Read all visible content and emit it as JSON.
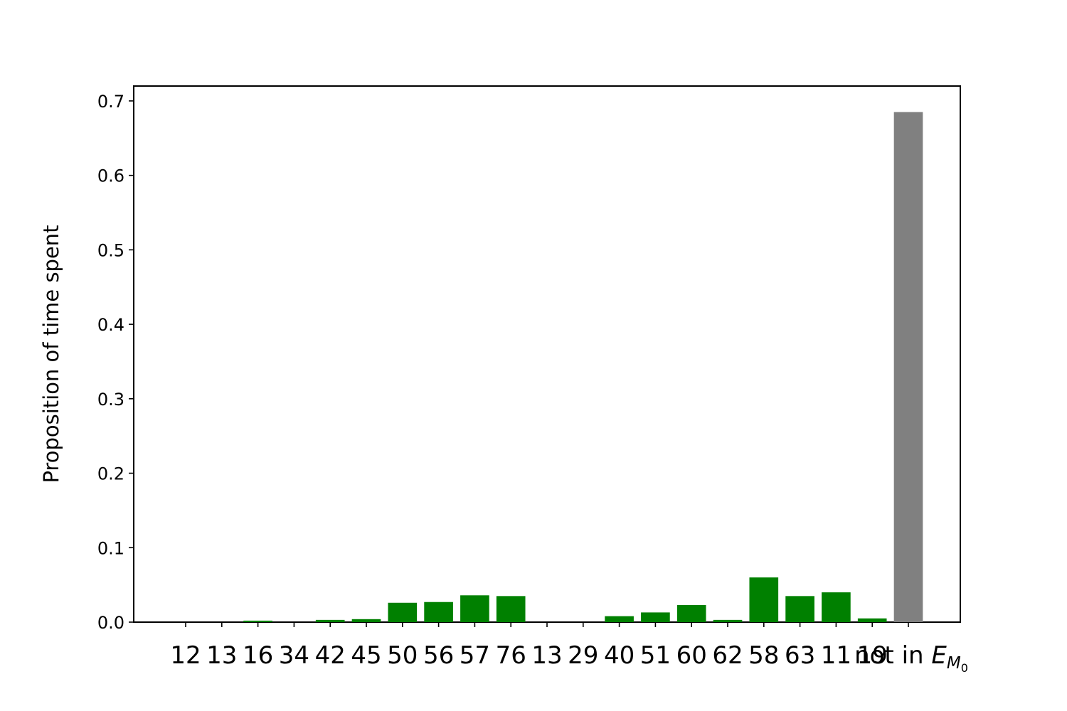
{
  "chart_data": {
    "type": "bar",
    "title": "",
    "xlabel": "",
    "ylabel": "Proposition of time spent",
    "ylim": [
      0,
      0.72
    ],
    "yticks": [
      "0.0",
      "0.1",
      "0.2",
      "0.3",
      "0.4",
      "0.5",
      "0.6",
      "0.7"
    ],
    "grid": false,
    "legend": "none",
    "categories": [
      "12",
      "13",
      "16",
      "34",
      "42",
      "45",
      "50",
      "56",
      "57",
      "76",
      "13",
      "29",
      "40",
      "51",
      "60",
      "62",
      "58",
      "63",
      "11",
      "19",
      "not in E_{M_0}"
    ],
    "last_label_parts": {
      "prefix": "not in ",
      "E": "E",
      "M": "M",
      "zero": "0"
    },
    "values": [
      0.0,
      0.0,
      0.002,
      0.0,
      0.003,
      0.004,
      0.026,
      0.027,
      0.036,
      0.035,
      0.0,
      0.0,
      0.008,
      0.013,
      0.023,
      0.003,
      0.06,
      0.035,
      0.04,
      0.005,
      0.685
    ],
    "colors": [
      "#008000",
      "#008000",
      "#008000",
      "#008000",
      "#008000",
      "#008000",
      "#008000",
      "#008000",
      "#008000",
      "#008000",
      "#008000",
      "#008000",
      "#008000",
      "#008000",
      "#008000",
      "#008000",
      "#008000",
      "#008000",
      "#008000",
      "#008000",
      "#808080"
    ]
  }
}
